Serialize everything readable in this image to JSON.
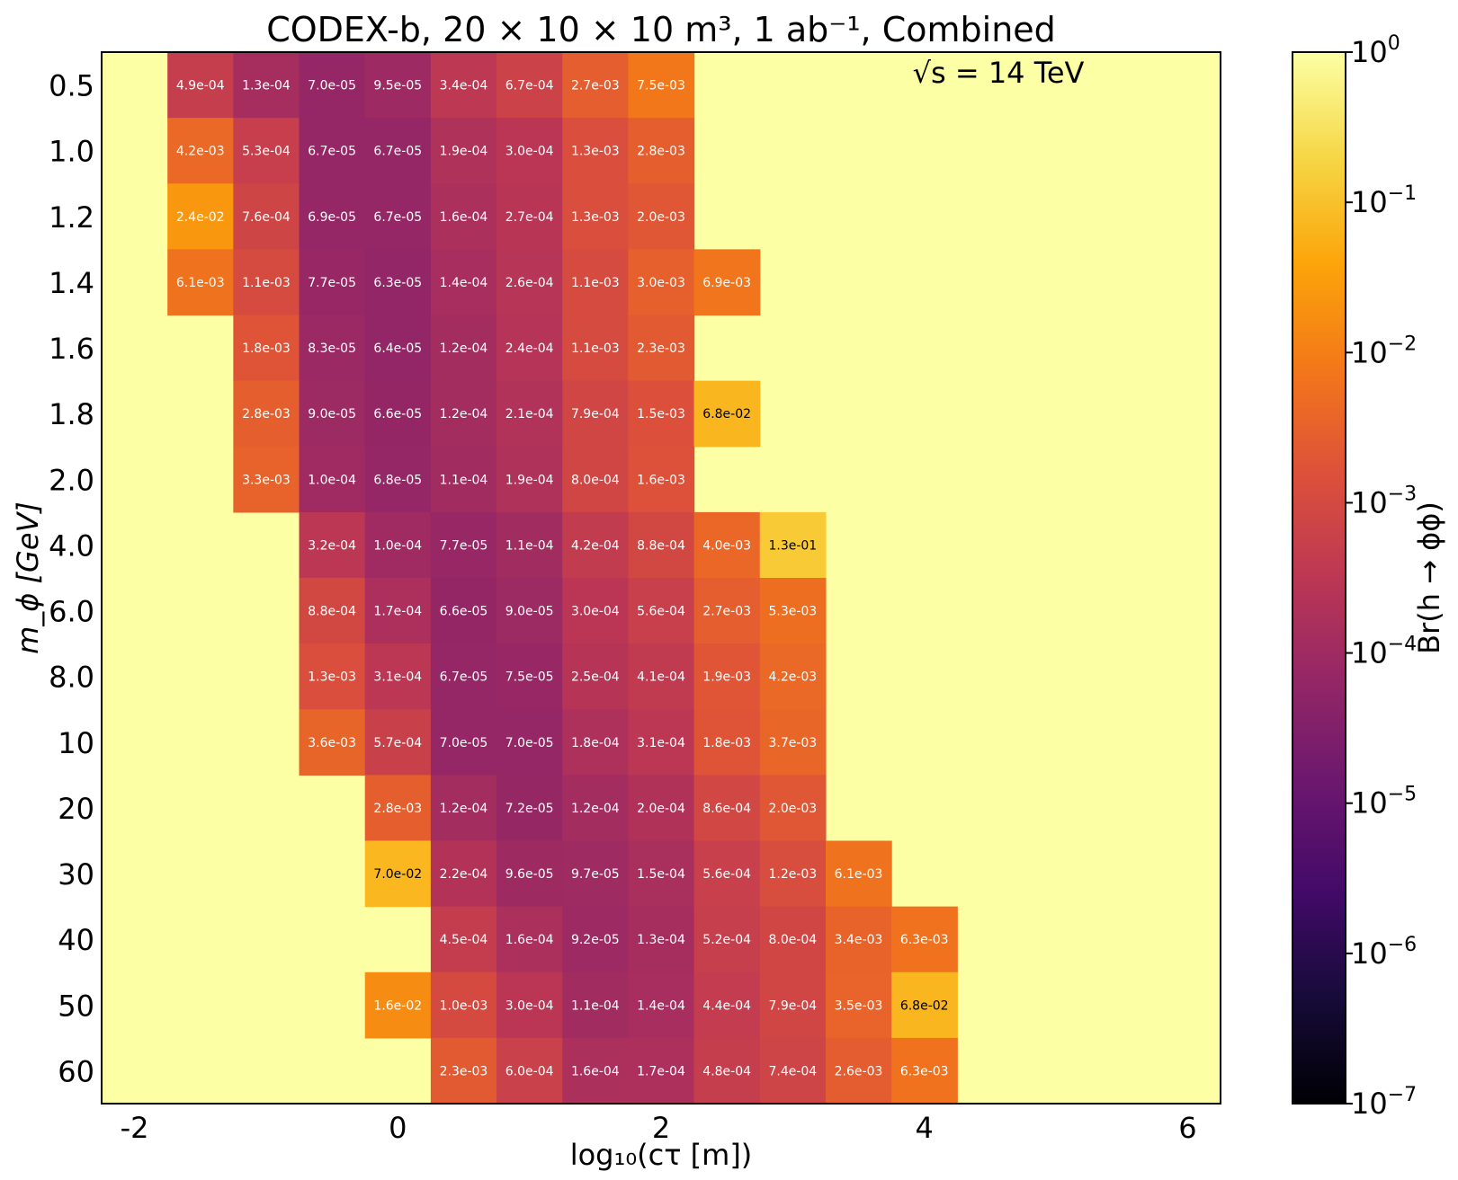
{
  "chart_data": {
    "type": "heatmap",
    "title": "CODEX-b, 20 × 10 × 10 m³, 1 ab⁻¹, Combined",
    "annotation": "√s = 14 TeV",
    "xlabel": "log₁₀(cτ [m])",
    "ylabel": "m_ϕ [GeV]",
    "colorbar_label": "Br(h → ϕϕ)",
    "colormap": "inferno",
    "scale": "log",
    "clim": [
      1e-07,
      1
    ],
    "xlim": [
      -2.25,
      6.25
    ],
    "x_ticks": [
      -2,
      0,
      2,
      4,
      6
    ],
    "x_tick_labels": [
      "-2",
      "0",
      "2",
      "4",
      "6"
    ],
    "colorbar_ticks": [
      {
        "exp": 0,
        "label": "10",
        "sup": "0"
      },
      {
        "exp": -1,
        "label": "10",
        "sup": "−1"
      },
      {
        "exp": -2,
        "label": "10",
        "sup": "−2"
      },
      {
        "exp": -3,
        "label": "10",
        "sup": "−3"
      },
      {
        "exp": -4,
        "label": "10",
        "sup": "−4"
      },
      {
        "exp": -5,
        "label": "10",
        "sup": "−5"
      },
      {
        "exp": -6,
        "label": "10",
        "sup": "−6"
      },
      {
        "exp": -7,
        "label": "10",
        "sup": "−7"
      }
    ],
    "background_value": 1,
    "x_columns": [
      -1.5,
      -1.0,
      -0.5,
      0.0,
      0.5,
      1.0,
      1.5,
      2.0,
      2.5,
      3.0,
      3.5,
      4.0
    ],
    "rows": [
      {
        "mass": "0.5",
        "start": -1.5,
        "values": [
          "4.9e-04",
          "1.3e-04",
          "7.0e-05",
          "9.5e-05",
          "3.4e-04",
          "6.7e-04",
          "2.7e-03",
          "7.5e-03"
        ]
      },
      {
        "mass": "1.0",
        "start": -1.5,
        "values": [
          "4.2e-03",
          "5.3e-04",
          "6.7e-05",
          "6.7e-05",
          "1.9e-04",
          "3.0e-04",
          "1.3e-03",
          "2.8e-03"
        ]
      },
      {
        "mass": "1.2",
        "start": -1.5,
        "values": [
          "2.4e-02",
          "7.6e-04",
          "6.9e-05",
          "6.7e-05",
          "1.6e-04",
          "2.7e-04",
          "1.3e-03",
          "2.0e-03"
        ]
      },
      {
        "mass": "1.4",
        "start": -1.5,
        "values": [
          "6.1e-03",
          "1.1e-03",
          "7.7e-05",
          "6.3e-05",
          "1.4e-04",
          "2.6e-04",
          "1.1e-03",
          "3.0e-03",
          "6.9e-03"
        ]
      },
      {
        "mass": "1.6",
        "start": -1.0,
        "values": [
          "1.8e-03",
          "8.3e-05",
          "6.4e-05",
          "1.2e-04",
          "2.4e-04",
          "1.1e-03",
          "2.3e-03"
        ]
      },
      {
        "mass": "1.8",
        "start": -1.0,
        "values": [
          "2.8e-03",
          "9.0e-05",
          "6.6e-05",
          "1.2e-04",
          "2.1e-04",
          "7.9e-04",
          "1.5e-03",
          "6.8e-02"
        ]
      },
      {
        "mass": "2.0",
        "start": -1.0,
        "values": [
          "3.3e-03",
          "1.0e-04",
          "6.8e-05",
          "1.1e-04",
          "1.9e-04",
          "8.0e-04",
          "1.6e-03"
        ]
      },
      {
        "mass": "4.0",
        "start": -0.5,
        "values": [
          "3.2e-04",
          "1.0e-04",
          "7.7e-05",
          "1.1e-04",
          "4.2e-04",
          "8.8e-04",
          "4.0e-03",
          "1.3e-01"
        ]
      },
      {
        "mass": "6.0",
        "start": -0.5,
        "values": [
          "8.8e-04",
          "1.7e-04",
          "6.6e-05",
          "9.0e-05",
          "3.0e-04",
          "5.6e-04",
          "2.7e-03",
          "5.3e-03"
        ]
      },
      {
        "mass": "8.0",
        "start": -0.5,
        "values": [
          "1.3e-03",
          "3.1e-04",
          "6.7e-05",
          "7.5e-05",
          "2.5e-04",
          "4.1e-04",
          "1.9e-03",
          "4.2e-03"
        ]
      },
      {
        "mass": "10",
        "start": -0.5,
        "values": [
          "3.6e-03",
          "5.7e-04",
          "7.0e-05",
          "7.0e-05",
          "1.8e-04",
          "3.1e-04",
          "1.8e-03",
          "3.7e-03"
        ]
      },
      {
        "mass": "20",
        "start": 0.0,
        "values": [
          "2.8e-03",
          "1.2e-04",
          "7.2e-05",
          "1.2e-04",
          "2.0e-04",
          "8.6e-04",
          "2.0e-03"
        ]
      },
      {
        "mass": "30",
        "start": 0.0,
        "values": [
          "7.0e-02",
          "2.2e-04",
          "9.6e-05",
          "9.7e-05",
          "1.5e-04",
          "5.6e-04",
          "1.2e-03",
          "6.1e-03"
        ]
      },
      {
        "mass": "40",
        "start": 0.5,
        "values": [
          "4.5e-04",
          "1.6e-04",
          "9.2e-05",
          "1.3e-04",
          "5.2e-04",
          "8.0e-04",
          "3.4e-03",
          "6.3e-03"
        ]
      },
      {
        "mass": "50",
        "start": 0.0,
        "values": [
          "1.6e-02",
          "1.0e-03",
          "3.0e-04",
          "1.1e-04",
          "1.4e-04",
          "4.4e-04",
          "7.9e-04",
          "3.5e-03",
          "6.8e-02"
        ]
      },
      {
        "mass": "60",
        "start": 0.5,
        "values": [
          "2.3e-03",
          "6.0e-04",
          "1.6e-04",
          "1.7e-04",
          "4.8e-04",
          "7.4e-04",
          "2.6e-03",
          "6.3e-03"
        ]
      }
    ]
  }
}
